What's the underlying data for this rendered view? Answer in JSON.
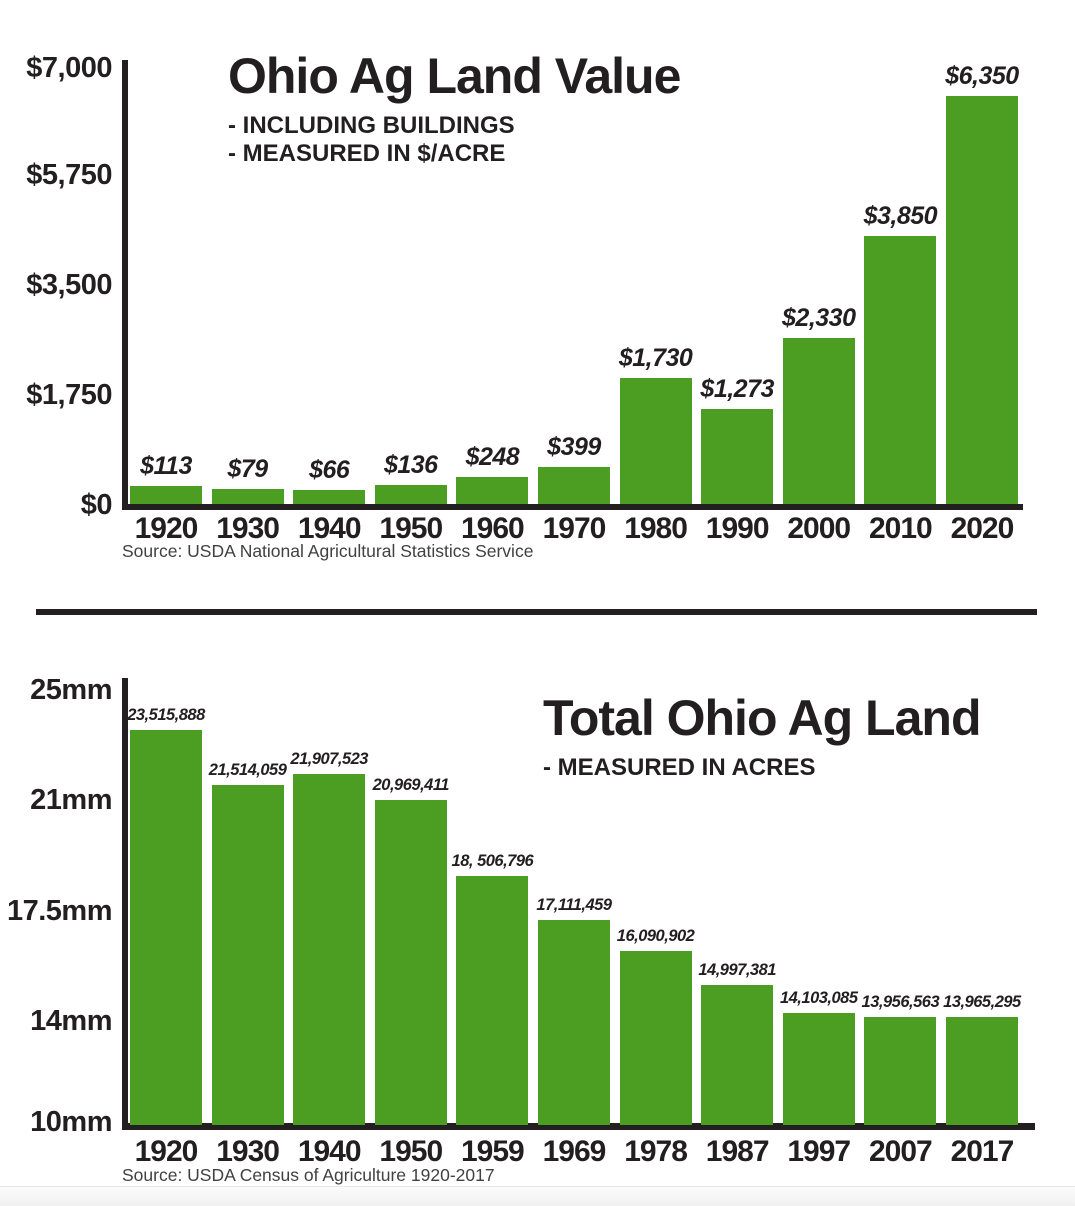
{
  "colors": {
    "bar_green": "#4c9e22",
    "ink": "#231f20",
    "source_gray": "#414042"
  },
  "chart_data": [
    {
      "type": "bar",
      "title": "Ohio Ag Land Value",
      "subtitle_lines": [
        "- INCLUDING BUILDINGS",
        "- MEASURED IN $/ACRE"
      ],
      "categories": [
        "1920",
        "1930",
        "1940",
        "1950",
        "1960",
        "1970",
        "1980",
        "1990",
        "2000",
        "2010",
        "2020"
      ],
      "values": [
        113,
        79,
        66,
        136,
        248,
        399,
        1730,
        1273,
        2330,
        3850,
        6350
      ],
      "bar_labels": [
        "$113",
        "$79",
        "$66",
        "$136",
        "$248",
        "$399",
        "$1,730",
        "$1,273",
        "$2,330",
        "$3,850",
        "$6,350"
      ],
      "ylabel": "$/ACRE",
      "y_ticks": [
        "$7,000",
        "$5,750",
        "$3,500",
        "$1,750",
        "$0"
      ],
      "y_tick_values": [
        7000,
        5750,
        3500,
        1750,
        0
      ],
      "ylim": [
        0,
        7000
      ],
      "grid": false,
      "legend": null,
      "source": "Source: USDA National Agricultural Statistics Service"
    },
    {
      "type": "bar",
      "title": "Total Ohio Ag Land",
      "subtitle_lines": [
        "- MEASURED IN ACRES"
      ],
      "categories": [
        "1920",
        "1930",
        "1940",
        "1950",
        "1959",
        "1969",
        "1978",
        "1987",
        "1997",
        "2007",
        "2017"
      ],
      "values": [
        23515888,
        21514059,
        21907523,
        20969411,
        18506796,
        17111459,
        16090902,
        14997381,
        14103085,
        13956563,
        13965295
      ],
      "bar_labels": [
        "23,515,888",
        "21,514,059",
        "21,907,523",
        "20,969,411",
        "18, 506,796",
        "17,111,459",
        "16,090,902",
        "14,997,381",
        "14,103,085",
        "13,956,563",
        "13,965,295"
      ],
      "ylabel": "ACRES",
      "y_ticks": [
        "25mm",
        "21mm",
        "17.5mm",
        "14mm",
        "10mm"
      ],
      "y_tick_values": [
        25000000,
        21000000,
        17500000,
        14000000,
        10000000
      ],
      "ylim": [
        10000000,
        25000000
      ],
      "grid": false,
      "legend": null,
      "source": "Source: USDA Census of Agriculture 1920-2017"
    }
  ]
}
